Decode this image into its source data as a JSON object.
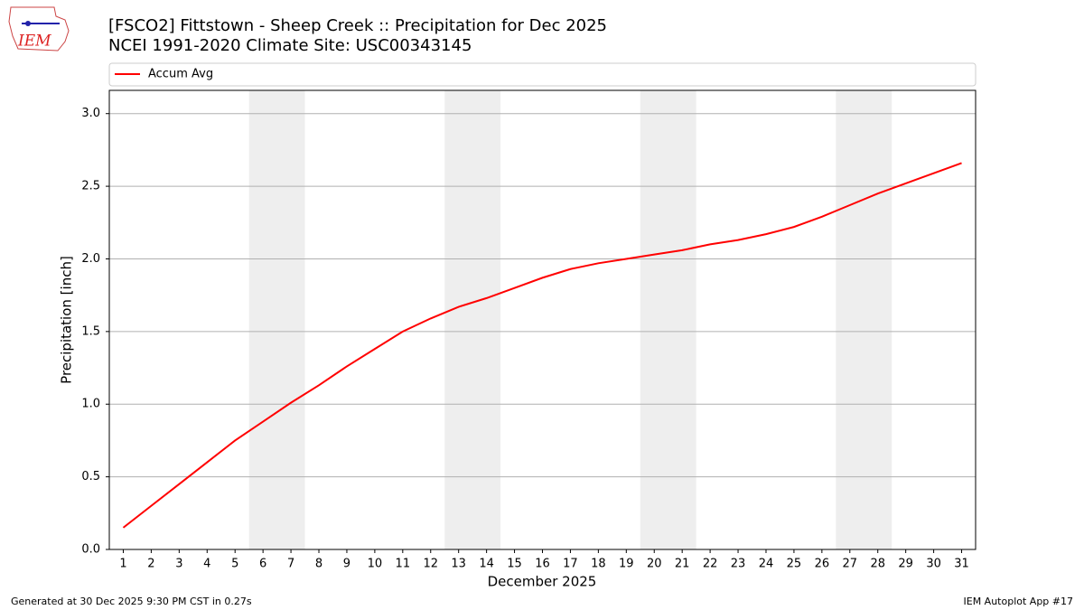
{
  "logo_text": "IEM",
  "footer_left": "Generated at 30 Dec 2025 9:30 PM CST in 0.27s",
  "footer_right": "IEM Autoplot App #17",
  "chart_data": {
    "type": "line",
    "title": "[FSCO2] Fittstown - Sheep Creek :: Precipitation for Dec 2025",
    "subtitle": "NCEI 1991-2020 Climate Site: USC00343145",
    "xlabel": "December 2025",
    "ylabel": "Precipitation [inch]",
    "x": [
      1,
      2,
      3,
      4,
      5,
      6,
      7,
      8,
      9,
      10,
      11,
      12,
      13,
      14,
      15,
      16,
      17,
      18,
      19,
      20,
      21,
      22,
      23,
      24,
      25,
      26,
      27,
      28,
      29,
      30,
      31
    ],
    "series": [
      {
        "name": "Accum Avg",
        "color": "#ff0000",
        "values": [
          0.15,
          0.3,
          0.45,
          0.6,
          0.75,
          0.88,
          1.01,
          1.13,
          1.26,
          1.38,
          1.5,
          1.59,
          1.67,
          1.73,
          1.8,
          1.87,
          1.93,
          1.97,
          2.0,
          2.03,
          2.06,
          2.1,
          2.13,
          2.17,
          2.22,
          2.29,
          2.37,
          2.45,
          2.52,
          2.59,
          2.66
        ]
      }
    ],
    "shaded_spans": [
      [
        5.5,
        7.5
      ],
      [
        12.5,
        14.5
      ],
      [
        19.5,
        21.5
      ],
      [
        26.5,
        28.5
      ]
    ],
    "shade_color": "#eeeeee",
    "xlim": [
      0.5,
      31.5
    ],
    "xticks": [
      1,
      2,
      3,
      4,
      5,
      6,
      7,
      8,
      9,
      10,
      11,
      12,
      13,
      14,
      15,
      16,
      17,
      18,
      19,
      20,
      21,
      22,
      23,
      24,
      25,
      26,
      27,
      28,
      29,
      30,
      31
    ],
    "ylim": [
      0,
      3.16
    ],
    "yticks": [
      {
        "value": 0,
        "label": "0.0"
      },
      0.5,
      {
        "value": 1,
        "label": "1.0"
      },
      1.5,
      {
        "value": 2,
        "label": "2.0"
      },
      2.5,
      {
        "value": 3,
        "label": "3.0"
      }
    ],
    "grid": true,
    "legend": "top-left"
  }
}
